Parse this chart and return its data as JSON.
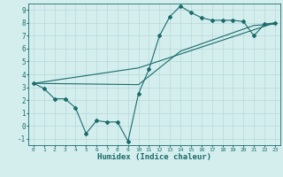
{
  "xlabel": "Humidex (Indice chaleur)",
  "ylabel": "",
  "bg_color": "#d4eeee",
  "line_color": "#1a6b6b",
  "grid_color": "#b8d8d8",
  "xlim": [
    -0.5,
    23.5
  ],
  "ylim": [
    -1.5,
    9.5
  ],
  "xticks": [
    0,
    1,
    2,
    3,
    4,
    5,
    6,
    7,
    8,
    9,
    10,
    11,
    12,
    13,
    14,
    15,
    16,
    17,
    18,
    19,
    20,
    21,
    22,
    23
  ],
  "yticks": [
    -1,
    0,
    1,
    2,
    3,
    4,
    5,
    6,
    7,
    8,
    9
  ],
  "line1_x": [
    0,
    1,
    2,
    3,
    4,
    5,
    6,
    7,
    8,
    9,
    10,
    11,
    12,
    13,
    14,
    15,
    16,
    17,
    18,
    19,
    20,
    21,
    22,
    23
  ],
  "line1_y": [
    3.3,
    2.9,
    2.1,
    2.1,
    1.4,
    -0.6,
    0.4,
    0.3,
    0.3,
    -1.2,
    2.5,
    4.4,
    7.0,
    8.5,
    9.3,
    8.8,
    8.4,
    8.2,
    8.2,
    8.2,
    8.1,
    7.0,
    7.9,
    8.0
  ],
  "line2_x": [
    0,
    10,
    23
  ],
  "line2_y": [
    3.3,
    4.5,
    8.0
  ],
  "line3_x": [
    0,
    10,
    14,
    21,
    23
  ],
  "line3_y": [
    3.3,
    3.2,
    5.8,
    7.8,
    7.9
  ],
  "xlabel_fontsize": 6.5,
  "tick_fontsize_x": 4.5,
  "tick_fontsize_y": 5.5
}
